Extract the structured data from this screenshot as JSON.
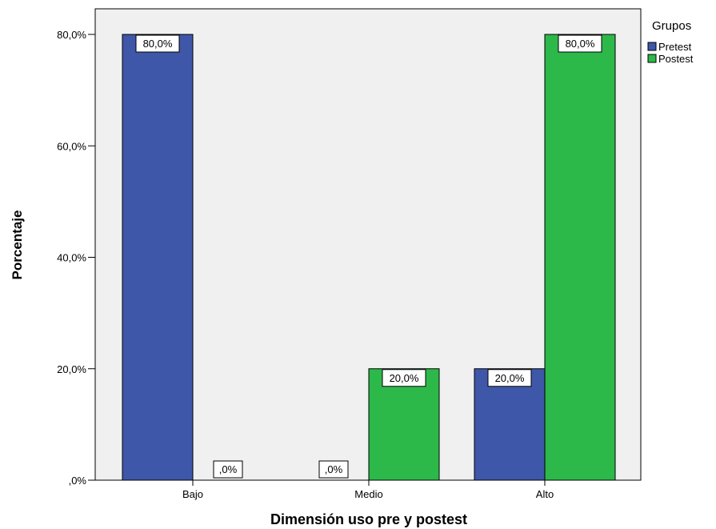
{
  "chart_data": {
    "type": "bar",
    "title": "",
    "xlabel": "Dimensión uso pre y postest",
    "ylabel": "Porcentaje",
    "categories": [
      "Bajo",
      "Medio",
      "Alto"
    ],
    "series": [
      {
        "name": "Pretest",
        "color": "#3F57A8",
        "values": [
          80,
          0,
          20
        ],
        "labels": [
          "80,0%",
          ",0%",
          "20,0%"
        ]
      },
      {
        "name": "Postest",
        "color": "#2DB84A",
        "values": [
          0,
          20,
          80
        ],
        "labels": [
          ",0%",
          "20,0%",
          "80,0%"
        ]
      }
    ],
    "ylim": [
      0,
      80
    ],
    "yticks": [
      0,
      20,
      40,
      60,
      80
    ],
    "ytick_labels": [
      ",0%",
      "20,0%",
      "40,0%",
      "60,0%",
      "80,0%"
    ],
    "legend": {
      "title": "Grupos",
      "position": "top-right"
    },
    "plot_background": "#F0F0F0",
    "grid": false
  }
}
